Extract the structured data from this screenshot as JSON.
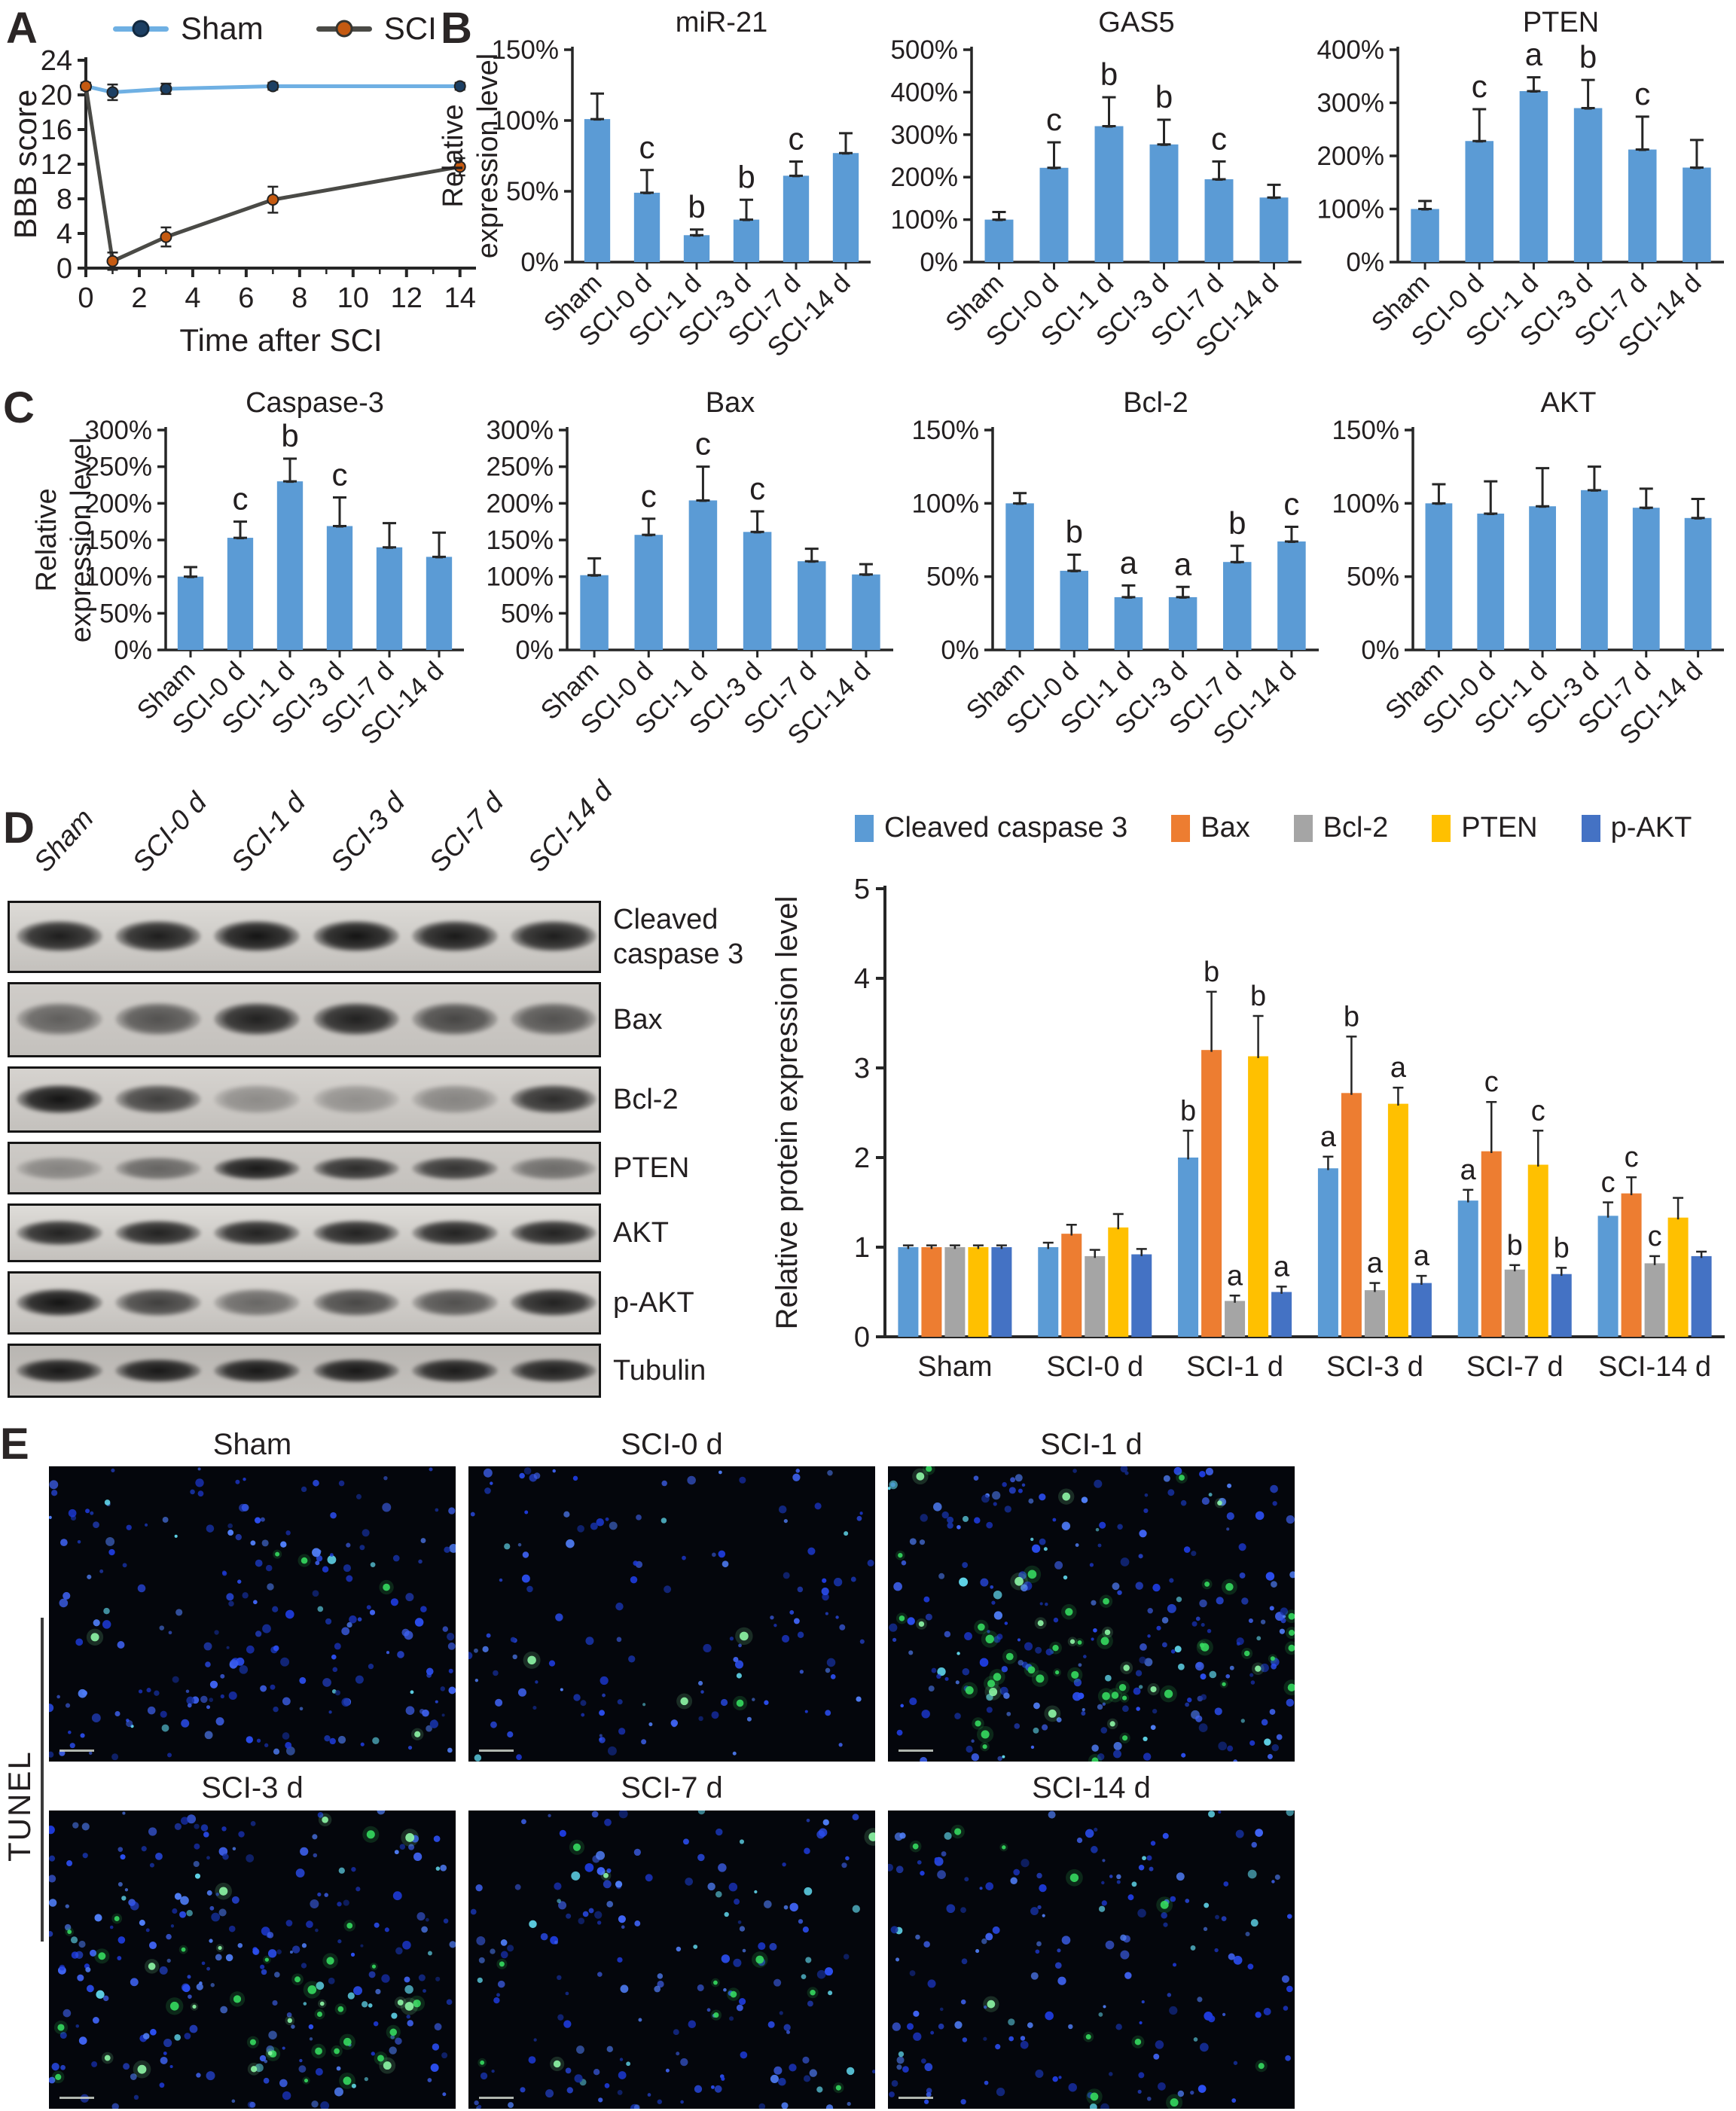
{
  "panel_labels": {
    "A": "A",
    "B": "B",
    "C": "C",
    "D": "D",
    "E": "E"
  },
  "colors": {
    "axis": "#262626",
    "text": "#231f20",
    "bar_blue": "#5b9bd5",
    "orange": "#ed7d31",
    "gray": "#a5a5a5",
    "yellow": "#ffc000",
    "dark_blue": "#4472c4",
    "sham_line": "#6fb0e3",
    "sham_marker": "#1c3f63",
    "sci_line": "#4a4a46",
    "sci_marker": "#c55a11"
  },
  "chart_data": [
    {
      "id": "bbb",
      "type": "line",
      "title": "",
      "xlabel": "Time after SCI",
      "ylabel": "BBB score",
      "xlim": [
        0,
        14.6
      ],
      "ylim": [
        0,
        24
      ],
      "xtick_step": 2,
      "ytick_step": 4,
      "minor_xtick": 1,
      "legend_position": "top",
      "series": [
        {
          "name": "Sham",
          "line_color": "#6fb0e3",
          "marker_color": "#1c3f63",
          "x": [
            0,
            1,
            3,
            7,
            14
          ],
          "y": [
            21,
            20.3,
            20.7,
            21,
            21
          ],
          "err": [
            0.4,
            0.9,
            0.6,
            0.4,
            0.4
          ]
        },
        {
          "name": "SCI",
          "line_color": "#4a4a46",
          "marker_color": "#c55a11",
          "x": [
            0,
            1,
            3,
            7,
            14
          ],
          "y": [
            21,
            0.8,
            3.6,
            7.9,
            11.7
          ],
          "err": [
            0.4,
            1.0,
            1.1,
            1.5,
            1.0
          ]
        }
      ]
    },
    {
      "id": "mir21",
      "type": "bar",
      "title": "miR-21",
      "ylabel": [
        "Relative",
        "expression level"
      ],
      "categories": [
        "Sham",
        "SCI-0 d",
        "SCI-1 d",
        "SCI-3 d",
        "SCI-7 d",
        "SCI-14 d"
      ],
      "values": [
        101,
        49,
        19,
        30,
        61,
        77
      ],
      "errors": [
        18,
        16,
        4,
        14,
        10,
        14
      ],
      "letters": [
        "",
        "c",
        "b",
        "b",
        "c",
        ""
      ],
      "ylim": [
        0,
        150
      ],
      "ytick_step": 50,
      "percent": true,
      "bar_color": "#5b9bd5"
    },
    {
      "id": "gas5",
      "type": "bar",
      "title": "GAS5",
      "ylabel": null,
      "categories": [
        "Sham",
        "SCI-0 d",
        "SCI-1 d",
        "SCI-3 d",
        "SCI-7 d",
        "SCI-14 d"
      ],
      "values": [
        100,
        222,
        320,
        277,
        195,
        152
      ],
      "errors": [
        18,
        60,
        68,
        58,
        42,
        30
      ],
      "letters": [
        "",
        "c",
        "b",
        "b",
        "c",
        ""
      ],
      "ylim": [
        0,
        500
      ],
      "ytick_step": 100,
      "percent": true,
      "bar_color": "#5b9bd5"
    },
    {
      "id": "pten_rna",
      "type": "bar",
      "title": "PTEN",
      "ylabel": null,
      "categories": [
        "Sham",
        "SCI-0 d",
        "SCI-1 d",
        "SCI-3 d",
        "SCI-7 d",
        "SCI-14 d"
      ],
      "values": [
        100,
        228,
        322,
        290,
        212,
        178
      ],
      "errors": [
        15,
        60,
        26,
        53,
        62,
        52
      ],
      "letters": [
        "",
        "c",
        "a",
        "b",
        "c",
        ""
      ],
      "ylim": [
        0,
        400
      ],
      "ytick_step": 100,
      "percent": true,
      "bar_color": "#5b9bd5"
    },
    {
      "id": "casp3",
      "type": "bar",
      "title": "Caspase-3",
      "ylabel": [
        "Relative",
        "expression level"
      ],
      "categories": [
        "Sham",
        "SCI-0 d",
        "SCI-1 d",
        "SCI-3 d",
        "SCI-7 d",
        "SCI-14 d"
      ],
      "values": [
        100,
        153,
        230,
        169,
        140,
        127
      ],
      "errors": [
        13,
        22,
        31,
        39,
        33,
        33
      ],
      "letters": [
        "",
        "c",
        "b",
        "c",
        "",
        ""
      ],
      "ylim": [
        0,
        300
      ],
      "ytick_step": 50,
      "percent": true,
      "bar_color": "#5b9bd5"
    },
    {
      "id": "bax_rna",
      "type": "bar",
      "title": "Bax",
      "ylabel": null,
      "categories": [
        "Sham",
        "SCI-0 d",
        "SCI-1 d",
        "SCI-3 d",
        "SCI-7 d",
        "SCI-14 d"
      ],
      "values": [
        102,
        157,
        204,
        161,
        121,
        103
      ],
      "errors": [
        23,
        22,
        46,
        28,
        17,
        14
      ],
      "letters": [
        "",
        "c",
        "c",
        "c",
        "",
        ""
      ],
      "ylim": [
        0,
        300
      ],
      "ytick_step": 50,
      "percent": true,
      "bar_color": "#5b9bd5"
    },
    {
      "id": "bcl2_rna",
      "type": "bar",
      "title": "Bcl-2",
      "ylabel": null,
      "categories": [
        "Sham",
        "SCI-0 d",
        "SCI-1 d",
        "SCI-3 d",
        "SCI-7 d",
        "SCI-14 d"
      ],
      "values": [
        100,
        54,
        36,
        36,
        60,
        74
      ],
      "errors": [
        7,
        11,
        8,
        7,
        11,
        10
      ],
      "letters": [
        "",
        "b",
        "a",
        "a",
        "b",
        "c"
      ],
      "ylim": [
        0,
        150
      ],
      "ytick_step": 50,
      "percent": true,
      "bar_color": "#5b9bd5"
    },
    {
      "id": "akt_rna",
      "type": "bar",
      "title": "AKT",
      "ylabel": null,
      "categories": [
        "Sham",
        "SCI-0 d",
        "SCI-1 d",
        "SCI-3 d",
        "SCI-7 d",
        "SCI-14 d"
      ],
      "values": [
        100,
        93,
        98,
        109,
        97,
        90
      ],
      "errors": [
        13,
        22,
        26,
        16,
        13,
        13
      ],
      "letters": [
        "",
        "",
        "",
        "",
        "",
        ""
      ],
      "ylim": [
        0,
        150
      ],
      "ytick_step": 50,
      "percent": true,
      "bar_color": "#5b9bd5"
    },
    {
      "id": "protein",
      "type": "grouped-bar",
      "title": "",
      "ylabel": "Relative protein expression level",
      "categories": [
        "Sham",
        "SCI-0 d",
        "SCI-1 d",
        "SCI-3 d",
        "SCI-7 d",
        "SCI-14 d"
      ],
      "ylim": [
        0,
        5
      ],
      "ytick_step": 1,
      "legend_position": "top",
      "series": [
        {
          "name": "Cleaved caspase 3",
          "color": "#5b9bd5",
          "values": [
            1.0,
            1.0,
            2.0,
            1.88,
            1.52,
            1.35
          ],
          "errors": [
            0.02,
            0.05,
            0.3,
            0.13,
            0.12,
            0.15
          ],
          "letters": [
            "",
            "",
            "b",
            "a",
            "a",
            "c"
          ]
        },
        {
          "name": "Bax",
          "color": "#ed7d31",
          "values": [
            1.0,
            1.15,
            3.2,
            2.72,
            2.07,
            1.6
          ],
          "errors": [
            0.02,
            0.1,
            0.65,
            0.63,
            0.55,
            0.18
          ],
          "letters": [
            "",
            "",
            "b",
            "b",
            "c",
            "c"
          ]
        },
        {
          "name": "Bcl-2",
          "color": "#a5a5a5",
          "values": [
            1.0,
            0.9,
            0.4,
            0.52,
            0.75,
            0.82
          ],
          "errors": [
            0.02,
            0.07,
            0.06,
            0.08,
            0.05,
            0.08
          ],
          "letters": [
            "",
            "",
            "a",
            "a",
            "b",
            "c"
          ]
        },
        {
          "name": "PTEN",
          "color": "#ffc000",
          "values": [
            1.0,
            1.22,
            3.13,
            2.6,
            1.92,
            1.33
          ],
          "errors": [
            0.02,
            0.15,
            0.45,
            0.18,
            0.38,
            0.22
          ],
          "letters": [
            "",
            "",
            "b",
            "a",
            "c",
            ""
          ]
        },
        {
          "name": "p-AKT",
          "color": "#4472c4",
          "values": [
            1.0,
            0.92,
            0.5,
            0.6,
            0.7,
            0.9
          ],
          "errors": [
            0.02,
            0.06,
            0.06,
            0.08,
            0.07,
            0.05
          ],
          "letters": [
            "",
            "",
            "a",
            "a",
            "b",
            ""
          ]
        }
      ]
    }
  ],
  "western": {
    "col_headers": [
      "Sham",
      "SCI-0 d",
      "SCI-1 d",
      "SCI-3 d",
      "SCI-7 d",
      "SCI-14 d"
    ],
    "rows": [
      {
        "label_lines": [
          "Cleaved",
          "caspase 3"
        ],
        "bg": "#dcdad6",
        "intensities": [
          0.9,
          0.9,
          0.95,
          0.95,
          0.92,
          0.9
        ]
      },
      {
        "label_lines": [
          "Bax"
        ],
        "bg": "#cfccc8",
        "intensities": [
          0.55,
          0.62,
          0.88,
          0.88,
          0.68,
          0.62
        ]
      },
      {
        "label_lines": [
          "Bcl-2"
        ],
        "bg": "#d6d3cf",
        "intensities": [
          0.95,
          0.72,
          0.32,
          0.3,
          0.36,
          0.82
        ]
      },
      {
        "label_lines": [
          "PTEN"
        ],
        "bg": "#cdcac6",
        "intensities": [
          0.35,
          0.52,
          0.92,
          0.82,
          0.78,
          0.48
        ]
      },
      {
        "label_lines": [
          "AKT"
        ],
        "bg": "#dedcd8",
        "intensities": [
          0.88,
          0.88,
          0.88,
          0.88,
          0.88,
          0.88
        ]
      },
      {
        "label_lines": [
          "p-AKT"
        ],
        "bg": "#dad7d3",
        "intensities": [
          0.95,
          0.72,
          0.52,
          0.68,
          0.64,
          0.88
        ]
      },
      {
        "label_lines": [
          "Tubulin"
        ],
        "bg": "#b9b6b2",
        "intensities": [
          0.92,
          0.92,
          0.92,
          0.92,
          0.9,
          0.88
        ]
      }
    ]
  },
  "tunel": {
    "row_label": "TUNEL",
    "images": [
      {
        "label": "Sham",
        "blue_dots": 210,
        "green_dots": 5
      },
      {
        "label": "SCI-0 d",
        "blue_dots": 130,
        "green_dots": 4
      },
      {
        "label": "SCI-1 d",
        "blue_dots": 240,
        "green_dots": 55
      },
      {
        "label": "SCI-3 d",
        "blue_dots": 230,
        "green_dots": 42
      },
      {
        "label": "SCI-7 d",
        "blue_dots": 170,
        "green_dots": 12
      },
      {
        "label": "SCI-14 d",
        "blue_dots": 170,
        "green_dots": 11
      }
    ]
  }
}
